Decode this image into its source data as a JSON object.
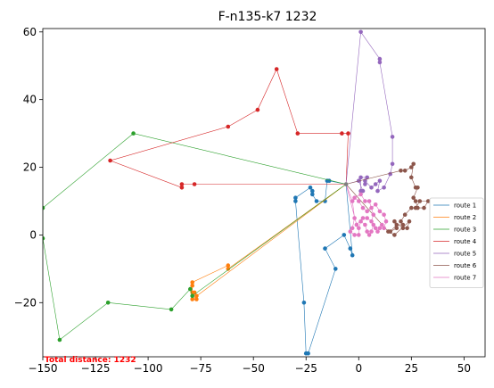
{
  "chart_data": {
    "type": "line",
    "title": "F-n135-k7 1232",
    "xlabel": "",
    "ylabel": "",
    "xlim": [
      -150,
      60
    ],
    "ylim": [
      -36,
      61
    ],
    "xticks": [
      -150,
      -125,
      -100,
      -75,
      -50,
      -25,
      0,
      25,
      50
    ],
    "yticks": [
      -20,
      0,
      20,
      40,
      60
    ],
    "tick_labels_x": [
      "−150",
      "−125",
      "−100",
      "−75",
      "−50",
      "−25",
      "0",
      "25",
      "50"
    ],
    "tick_labels_y": [
      "−20",
      "0",
      "20",
      "40",
      "60"
    ],
    "grid": false,
    "legend_position": "center-right",
    "depot": [
      -6,
      15
    ],
    "annotation": {
      "text": "Total distance: 1232",
      "color": "#ff0000"
    },
    "series": [
      {
        "name": "route 1",
        "color": "#1f77b4",
        "points": [
          [
            -6,
            15
          ],
          [
            -14,
            16
          ],
          [
            -15,
            16
          ],
          [
            -16,
            10
          ],
          [
            -20,
            10
          ],
          [
            -22,
            12
          ],
          [
            -22,
            13
          ],
          [
            -23,
            14
          ],
          [
            -30,
            11
          ],
          [
            -30,
            10
          ],
          [
            -26,
            -20
          ],
          [
            -25,
            -35
          ],
          [
            -24,
            -35
          ],
          [
            -11,
            -10
          ],
          [
            -16,
            -4
          ],
          [
            -7,
            0
          ],
          [
            -4,
            -4
          ],
          [
            -3,
            -6
          ],
          [
            -6,
            15
          ]
        ]
      },
      {
        "name": "route 2",
        "color": "#ff7f0e",
        "points": [
          [
            -6,
            15
          ],
          [
            -62,
            -10
          ],
          [
            -62,
            -9
          ],
          [
            -79,
            -14
          ],
          [
            -79,
            -15
          ],
          [
            -79,
            -17
          ],
          [
            -78,
            -17
          ],
          [
            -77,
            -18
          ],
          [
            -77,
            -19
          ],
          [
            -79,
            -19
          ],
          [
            -6,
            15
          ]
        ]
      },
      {
        "name": "route 3",
        "color": "#2ca02c",
        "points": [
          [
            -6,
            15
          ],
          [
            -107,
            30
          ],
          [
            -150,
            8
          ],
          [
            -150,
            -1
          ],
          [
            -142,
            -31
          ],
          [
            -119,
            -20
          ],
          [
            -89,
            -22
          ],
          [
            -80,
            -16
          ],
          [
            -79,
            -18
          ],
          [
            -6,
            15
          ]
        ]
      },
      {
        "name": "route 4",
        "color": "#d62728",
        "points": [
          [
            -6,
            15
          ],
          [
            -78,
            15
          ],
          [
            -84,
            15
          ],
          [
            -84,
            14
          ],
          [
            -118,
            22
          ],
          [
            -62,
            32
          ],
          [
            -48,
            37
          ],
          [
            -39,
            49
          ],
          [
            -29,
            30
          ],
          [
            -8,
            30
          ],
          [
            -5,
            30
          ],
          [
            -6,
            15
          ]
        ]
      },
      {
        "name": "route 5",
        "color": "#9467bd",
        "points": [
          [
            -6,
            15
          ],
          [
            1,
            60
          ],
          [
            10,
            52
          ],
          [
            10,
            51
          ],
          [
            16,
            29
          ],
          [
            16,
            21
          ],
          [
            15,
            18
          ],
          [
            12,
            14
          ],
          [
            9,
            13
          ],
          [
            10,
            16
          ],
          [
            8,
            15
          ],
          [
            6,
            14
          ],
          [
            3,
            16
          ],
          [
            3,
            15
          ],
          [
            4,
            17
          ],
          [
            1,
            17
          ],
          [
            1,
            13
          ],
          [
            2,
            13
          ],
          [
            0,
            16
          ],
          [
            -6,
            15
          ]
        ]
      },
      {
        "name": "route 6",
        "color": "#8c564b",
        "points": [
          [
            -6,
            15
          ],
          [
            20,
            19
          ],
          [
            22,
            19
          ],
          [
            25,
            20
          ],
          [
            26,
            21
          ],
          [
            25,
            17
          ],
          [
            27,
            14
          ],
          [
            28,
            14
          ],
          [
            26,
            11
          ],
          [
            27,
            10
          ],
          [
            28,
            8
          ],
          [
            31,
            8
          ],
          [
            33,
            10
          ],
          [
            29,
            10
          ],
          [
            27,
            8
          ],
          [
            25,
            8
          ],
          [
            22,
            6
          ],
          [
            20,
            4
          ],
          [
            21,
            3
          ],
          [
            18,
            3
          ],
          [
            15,
            1
          ],
          [
            18,
            2
          ],
          [
            17,
            4
          ],
          [
            21,
            2
          ],
          [
            23,
            2
          ],
          [
            24,
            4
          ],
          [
            17,
            0
          ],
          [
            14,
            1
          ],
          [
            -6,
            15
          ]
        ]
      },
      {
        "name": "route 7",
        "color": "#e377c2",
        "points": [
          [
            -6,
            15
          ],
          [
            -3,
            10
          ],
          [
            -2,
            5
          ],
          [
            -3,
            2
          ],
          [
            -4,
            1
          ],
          [
            -2,
            0
          ],
          [
            0,
            0
          ],
          [
            0,
            2
          ],
          [
            1,
            4
          ],
          [
            3,
            3
          ],
          [
            4,
            1
          ],
          [
            5,
            0
          ],
          [
            6,
            1
          ],
          [
            7,
            3
          ],
          [
            8,
            2
          ],
          [
            9,
            1
          ],
          [
            10,
            2
          ],
          [
            11,
            3
          ],
          [
            12,
            2
          ],
          [
            13,
            4
          ],
          [
            12,
            6
          ],
          [
            10,
            7
          ],
          [
            8,
            9
          ],
          [
            6,
            8
          ],
          [
            4,
            7
          ],
          [
            2,
            8
          ],
          [
            0,
            10
          ],
          [
            -2,
            11
          ],
          [
            1,
            12
          ],
          [
            3,
            10
          ],
          [
            5,
            10
          ],
          [
            7,
            6
          ],
          [
            6,
            4
          ],
          [
            4,
            5
          ],
          [
            2,
            5
          ],
          [
            -1,
            3
          ],
          [
            -6,
            15
          ]
        ]
      }
    ]
  }
}
